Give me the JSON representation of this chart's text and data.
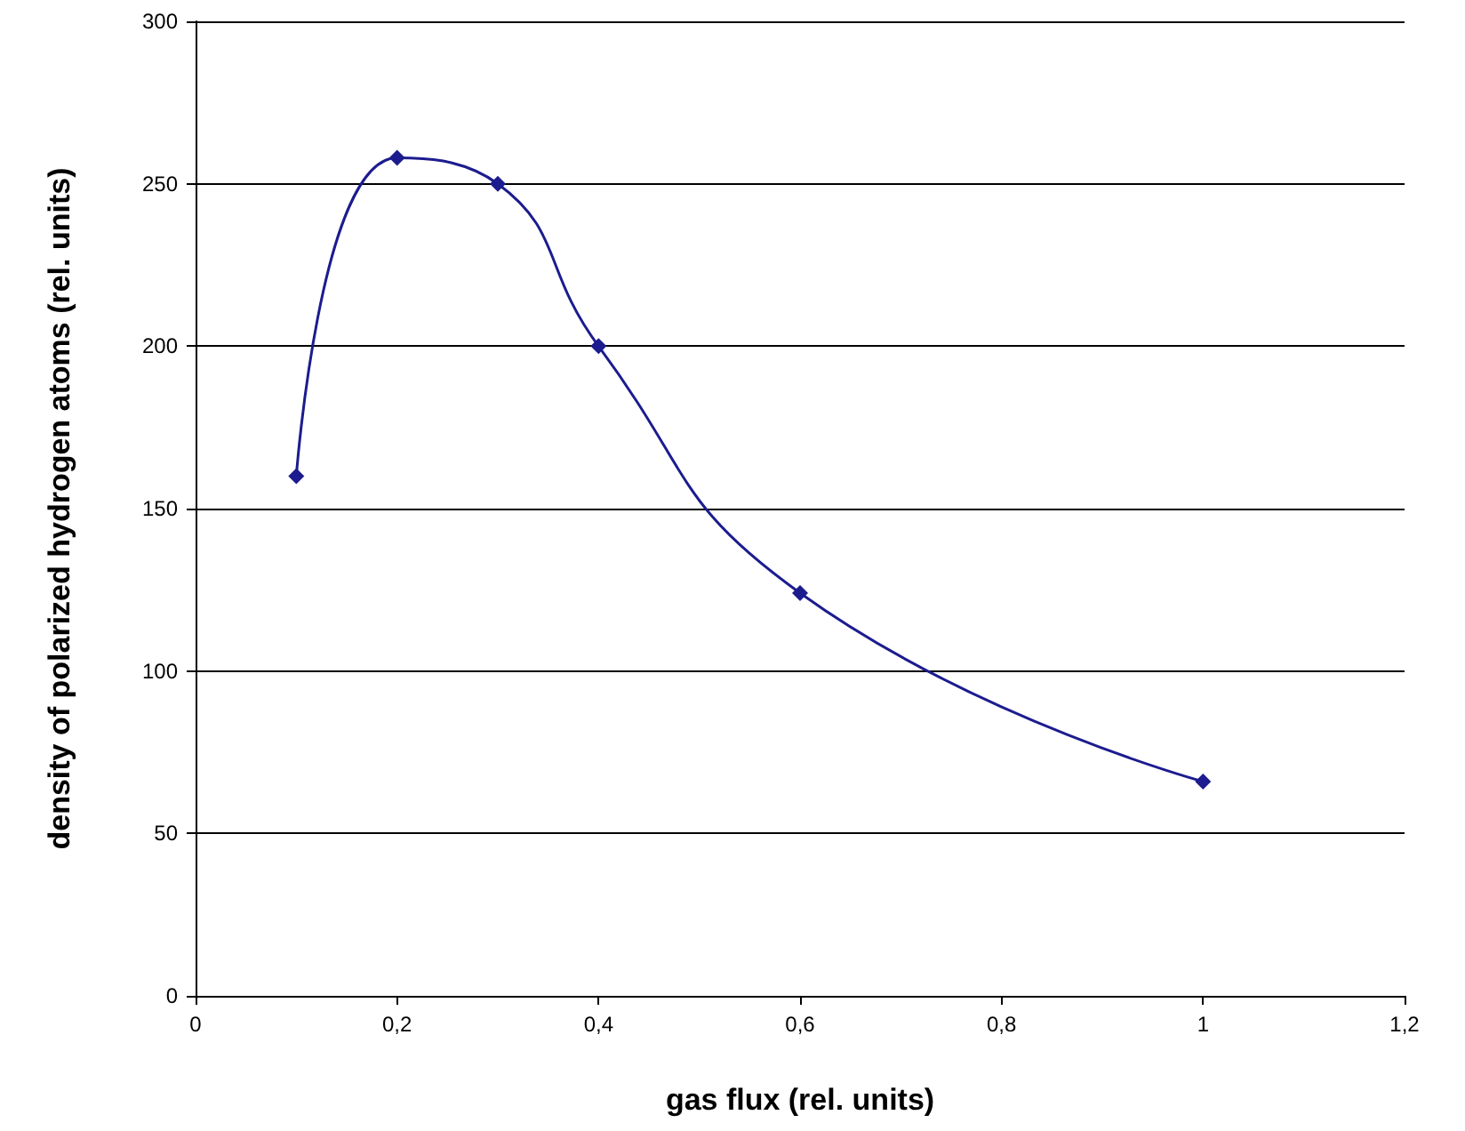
{
  "chart_data": {
    "type": "line",
    "xlabel": "gas flux (rel. units)",
    "ylabel": "density of polarized hydrogen atoms (rel. units)",
    "x": [
      0.1,
      0.2,
      0.3,
      0.4,
      0.6,
      1
    ],
    "series": [
      {
        "color": "#1c1c8f",
        "values": [
          160,
          258,
          250,
          200,
          124,
          66
        ]
      }
    ],
    "xlim": [
      0,
      1.2
    ],
    "xticks": [
      {
        "value": 0,
        "label": "0"
      },
      {
        "value": 0.2,
        "label": "0,2"
      },
      {
        "value": 0.4,
        "label": "0,4"
      },
      {
        "value": 0.6,
        "label": "0,6"
      },
      {
        "value": 0.8,
        "label": "0,8"
      },
      {
        "value": 1,
        "label": "1"
      },
      {
        "value": 1.2,
        "label": "1,2"
      }
    ],
    "ylim": [
      0,
      300
    ],
    "yticks": [
      0,
      50,
      100,
      150,
      200,
      250,
      300
    ],
    "grid": "y",
    "marker": "diamond",
    "line_style": "solid"
  }
}
